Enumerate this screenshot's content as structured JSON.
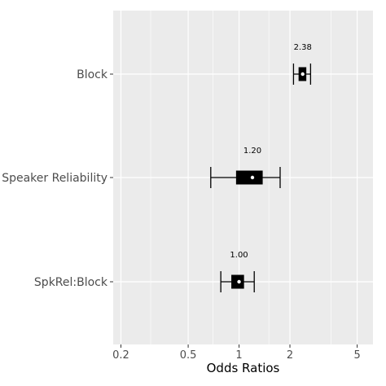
{
  "chart_data": {
    "type": "forest",
    "xlabel": "Odds Ratios",
    "x_scale": "log",
    "xlim": [
      0.18,
      6.2
    ],
    "x_major_ticks": [
      0.2,
      0.5,
      1,
      2,
      5
    ],
    "x_minor_ticks": [
      0.3,
      0.7,
      1.5,
      3.5
    ],
    "categories": [
      "Block",
      "Speaker Reliability",
      "SpkRel:Block"
    ],
    "series": [
      {
        "label": "Block",
        "estimate": 2.38,
        "estimate_label": "2.38",
        "ci_low": 2.1,
        "ci_high": 2.65,
        "box_low": 2.25,
        "box_high": 2.5
      },
      {
        "label": "Speaker Reliability",
        "estimate": 1.2,
        "estimate_label": "1.20",
        "ci_low": 0.68,
        "ci_high": 1.75,
        "box_low": 0.96,
        "box_high": 1.38
      },
      {
        "label": "SpkRel:Block",
        "estimate": 1.0,
        "estimate_label": "1.00",
        "ci_low": 0.78,
        "ci_high": 1.23,
        "box_low": 0.9,
        "box_high": 1.07
      }
    ],
    "grid": true,
    "colors": {
      "panel": "#ebebeb",
      "grid": "#ffffff",
      "mark": "#000000",
      "estimate_dot": "#ffffff"
    }
  }
}
